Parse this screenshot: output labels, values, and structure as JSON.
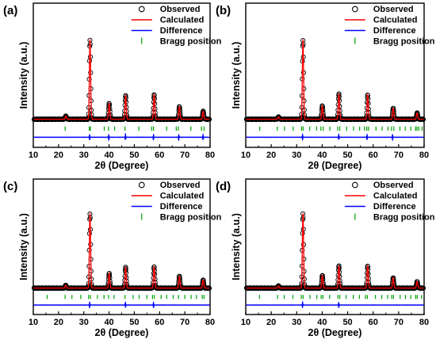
{
  "chart_data": [
    {
      "panel_label": "(a)",
      "type": "line",
      "xlabel": "2θ (Degree)",
      "ylabel": "Intensity (a.u.)",
      "xlim": [
        10,
        80
      ],
      "xticks": [
        10,
        20,
        30,
        40,
        50,
        60,
        70,
        80
      ],
      "legend": {
        "position": "top-right",
        "entries": [
          "Observed",
          "Calculated",
          "Difference",
          "Bragg position"
        ]
      },
      "series": [
        {
          "name": "Observed",
          "style": "open-circles",
          "color": "#000000"
        },
        {
          "name": "Calculated",
          "style": "line",
          "color": "#ff0000"
        },
        {
          "name": "Difference",
          "style": "line",
          "color": "#0000ff"
        },
        {
          "name": "Bragg position",
          "style": "ticks",
          "color": "#00a000"
        }
      ],
      "peaks": [
        {
          "x": 22.8,
          "y": 0.04
        },
        {
          "x": 32.4,
          "y": 1.0
        },
        {
          "x": 40.0,
          "y": 0.2
        },
        {
          "x": 46.5,
          "y": 0.3
        },
        {
          "x": 57.8,
          "y": 0.31
        },
        {
          "x": 67.8,
          "y": 0.16
        },
        {
          "x": 77.2,
          "y": 0.1
        }
      ],
      "bragg_positions": [
        22.6,
        32.2,
        32.6,
        38.1,
        39.8,
        42.2,
        46.3,
        51.8,
        56.9,
        57.6,
        62.8,
        66.6,
        67.4,
        72.4,
        76.6,
        77.6
      ],
      "difference_spikes": [
        32.3,
        39.9,
        46.5,
        57.6,
        67.6,
        77.2
      ]
    },
    {
      "panel_label": "(b)",
      "type": "line",
      "xlabel": "2θ (Degree)",
      "ylabel": "Intensity (a.u.)",
      "xlim": [
        10,
        80
      ],
      "xticks": [
        10,
        20,
        30,
        40,
        50,
        60,
        70,
        80
      ],
      "legend": {
        "position": "top-right",
        "entries": [
          "Observed",
          "Calculated",
          "Difference",
          "Bragg position"
        ]
      },
      "series": [
        {
          "name": "Observed",
          "style": "open-circles",
          "color": "#000000"
        },
        {
          "name": "Calculated",
          "style": "line",
          "color": "#ff0000"
        },
        {
          "name": "Difference",
          "style": "line",
          "color": "#0000ff"
        },
        {
          "name": "Bragg position",
          "style": "ticks",
          "color": "#00a000"
        }
      ],
      "peaks": [
        {
          "x": 22.8,
          "y": 0.03
        },
        {
          "x": 32.4,
          "y": 1.0
        },
        {
          "x": 40.0,
          "y": 0.17
        },
        {
          "x": 46.5,
          "y": 0.32
        },
        {
          "x": 57.8,
          "y": 0.31
        },
        {
          "x": 67.8,
          "y": 0.14
        },
        {
          "x": 77.2,
          "y": 0.08
        }
      ],
      "bragg_positions": [
        15.5,
        22.4,
        25.2,
        28.6,
        31.9,
        32.5,
        35.1,
        37.8,
        39.5,
        40.4,
        43.0,
        46.1,
        46.9,
        49.6,
        52.3,
        54.7,
        56.6,
        57.5,
        58.2,
        61.1,
        63.5,
        65.8,
        67.2,
        68.1,
        70.5,
        72.6,
        74.8,
        76.6,
        77.2,
        77.9,
        79.2
      ],
      "difference_spikes": [
        32.3,
        46.5,
        57.6,
        67.6
      ]
    },
    {
      "panel_label": "(c)",
      "type": "line",
      "xlabel": "2θ (Degree)",
      "ylabel": "Intensity (a.u.)",
      "xlim": [
        10,
        80
      ],
      "xticks": [
        10,
        20,
        30,
        40,
        50,
        60,
        70,
        80
      ],
      "legend": {
        "position": "top-right",
        "entries": [
          "Observed",
          "Calculated",
          "Difference",
          "Bragg position"
        ]
      },
      "series": [
        {
          "name": "Observed",
          "style": "open-circles",
          "color": "#000000"
        },
        {
          "name": "Calculated",
          "style": "line",
          "color": "#ff0000"
        },
        {
          "name": "Difference",
          "style": "line",
          "color": "#0000ff"
        },
        {
          "name": "Bragg position",
          "style": "ticks",
          "color": "#00a000"
        }
      ],
      "peaks": [
        {
          "x": 22.8,
          "y": 0.04
        },
        {
          "x": 32.4,
          "y": 1.0
        },
        {
          "x": 40.0,
          "y": 0.2
        },
        {
          "x": 46.5,
          "y": 0.28
        },
        {
          "x": 57.8,
          "y": 0.29
        },
        {
          "x": 67.8,
          "y": 0.16
        },
        {
          "x": 77.2,
          "y": 0.11
        }
      ],
      "bragg_positions": [
        15.5,
        22.6,
        25.3,
        28.8,
        31.9,
        32.6,
        35.4,
        38.0,
        39.8,
        42.0,
        46.3,
        49.5,
        51.9,
        55.0,
        57.2,
        57.9,
        60.6,
        62.8,
        65.4,
        67.5,
        70.0,
        72.5,
        74.6,
        76.9,
        77.6
      ],
      "difference_spikes": [
        32.3,
        46.5,
        57.6
      ]
    },
    {
      "panel_label": "(d)",
      "type": "line",
      "xlabel": "2θ (Degree)",
      "ylabel": "Intensity (a.u.)",
      "xlim": [
        10,
        80
      ],
      "xticks": [
        10,
        20,
        30,
        40,
        50,
        60,
        70,
        80
      ],
      "legend": {
        "position": "top-right",
        "entries": [
          "Observed",
          "Calculated",
          "Difference",
          "Bragg position"
        ]
      },
      "series": [
        {
          "name": "Observed",
          "style": "open-circles",
          "color": "#000000"
        },
        {
          "name": "Calculated",
          "style": "line",
          "color": "#ff0000"
        },
        {
          "name": "Difference",
          "style": "line",
          "color": "#0000ff"
        },
        {
          "name": "Bragg position",
          "style": "ticks",
          "color": "#00a000"
        }
      ],
      "peaks": [
        {
          "x": 22.8,
          "y": 0.03
        },
        {
          "x": 32.4,
          "y": 1.0
        },
        {
          "x": 40.0,
          "y": 0.17
        },
        {
          "x": 46.5,
          "y": 0.3
        },
        {
          "x": 57.8,
          "y": 0.3
        },
        {
          "x": 67.8,
          "y": 0.14
        },
        {
          "x": 77.2,
          "y": 0.09
        }
      ],
      "bragg_positions": [
        15.4,
        22.5,
        25.1,
        28.5,
        31.8,
        32.5,
        35.2,
        37.9,
        39.6,
        40.3,
        42.9,
        46.2,
        46.9,
        49.4,
        52.2,
        54.6,
        57.0,
        57.7,
        60.9,
        63.4,
        65.7,
        67.3,
        68.0,
        70.6,
        72.7,
        74.8,
        76.7,
        77.3,
        79.0
      ],
      "difference_spikes": [
        32.3,
        46.5
      ]
    }
  ]
}
